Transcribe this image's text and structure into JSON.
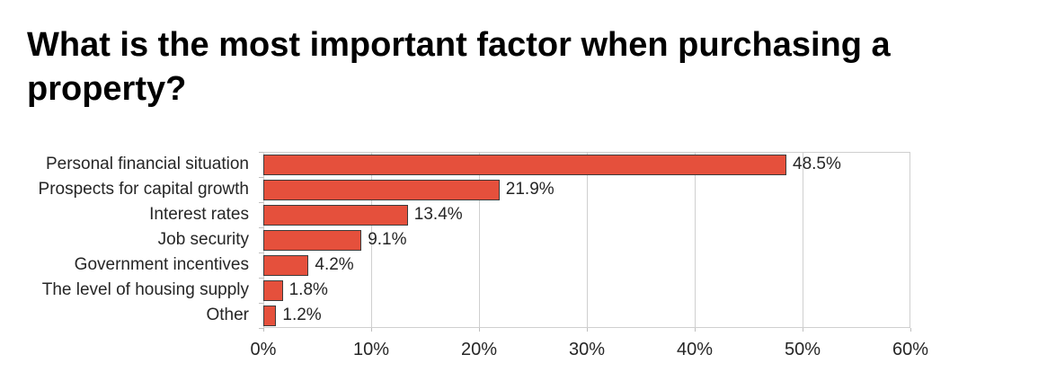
{
  "title": "What is the most important factor when purchasing a property?",
  "chart_data": {
    "type": "bar",
    "orientation": "horizontal",
    "title": "What is the most important factor when purchasing a property?",
    "categories": [
      "Personal financial situation",
      "Prospects for capital growth",
      "Interest rates",
      "Job security",
      "Government incentives",
      "The level of housing supply",
      "Other"
    ],
    "values": [
      48.5,
      21.9,
      13.4,
      9.1,
      4.2,
      1.8,
      1.2
    ],
    "value_labels": [
      "48.5%",
      "21.9%",
      "13.4%",
      "9.1%",
      "4.2%",
      "1.8%",
      "1.2%"
    ],
    "x_tick_labels": [
      "0%",
      "10%",
      "20%",
      "30%",
      "40%",
      "50%",
      "60%"
    ],
    "x_tick_values": [
      0,
      10,
      20,
      30,
      40,
      50,
      60
    ],
    "xlim": [
      0,
      60
    ],
    "xlabel": "",
    "ylabel": "",
    "grid": "vertical",
    "legend": "none",
    "colors": {
      "bar_fill": "#e5503c",
      "bar_border": "#3c3c3c",
      "gridline": "#cfcfcf",
      "axis_tick": "#bfbfbf",
      "label_text": "#262626",
      "title_text": "#000000",
      "background": "#ffffff"
    }
  }
}
